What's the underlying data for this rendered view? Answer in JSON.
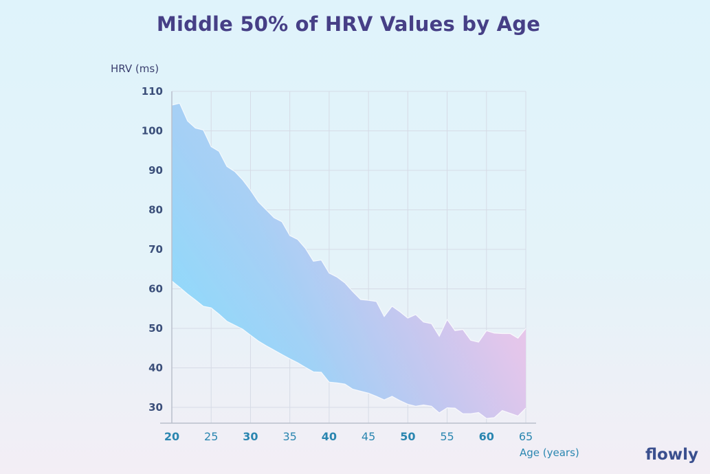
{
  "title": "Middle 50% of HRV Values by Age",
  "brand": "flowly",
  "chart_data": {
    "type": "area",
    "title": "Middle 50% of HRV Values by Age",
    "xlabel": "Age (years)",
    "ylabel": "HRV (ms)",
    "xlim": [
      20,
      65
    ],
    "ylim": [
      26,
      110
    ],
    "x_ticks": [
      "20",
      "25",
      "30",
      "35",
      "40",
      "45",
      "50",
      "55",
      "60",
      "65"
    ],
    "y_ticks": [
      "30",
      "40",
      "50",
      "60",
      "70",
      "80",
      "90",
      "100",
      "110"
    ],
    "grid": true,
    "x": [
      20,
      21,
      22,
      23,
      24,
      25,
      26,
      27,
      28,
      29,
      30,
      31,
      32,
      33,
      34,
      35,
      36,
      37,
      38,
      39,
      40,
      41,
      42,
      43,
      44,
      45,
      46,
      47,
      48,
      49,
      50,
      51,
      52,
      53,
      54,
      55,
      56,
      57,
      58,
      59,
      60,
      61,
      62,
      63,
      64,
      65
    ],
    "series": [
      {
        "role": "upper",
        "values": [
          106.5,
          107,
          102.5,
          100.7,
          100.2,
          96,
          94.8,
          91,
          89.7,
          87.6,
          85,
          82,
          80,
          78,
          77,
          73.5,
          72.5,
          70.2,
          67,
          67.3,
          64,
          63,
          61.5,
          59.3,
          57.3,
          57.1,
          56.8,
          53,
          55.6,
          54.2,
          52.6,
          53.5,
          51.6,
          51.2,
          48,
          52.2,
          49.4,
          49.7,
          47,
          46.5,
          49.4,
          48.8,
          48.7,
          48.7,
          47.5,
          50
        ]
      },
      {
        "role": "lower",
        "values": [
          62,
          60.4,
          58.7,
          57.2,
          55.6,
          55.2,
          53.6,
          51.8,
          50.8,
          49.8,
          48.3,
          46.8,
          45.6,
          44.5,
          43.4,
          42.3,
          41.3,
          40.1,
          39,
          38.9,
          36.4,
          36.2,
          35.9,
          34.6,
          34.1,
          33.6,
          32.8,
          31.9,
          32.8,
          31.7,
          30.8,
          30.3,
          30.6,
          30.3,
          28.6,
          29.9,
          29.8,
          28.4,
          28.4,
          28.7,
          27.2,
          27.4,
          29.2,
          28.5,
          27.8,
          29.8
        ]
      }
    ]
  }
}
